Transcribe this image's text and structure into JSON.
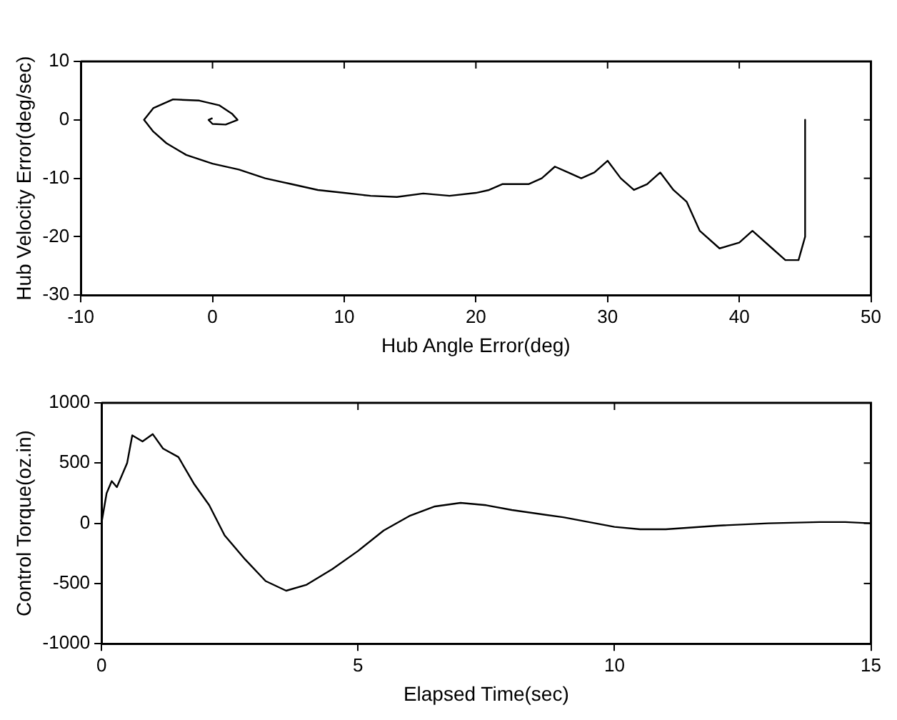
{
  "chart_data": [
    {
      "type": "line",
      "xlabel": "Hub Angle Error(deg)",
      "ylabel": "Hub Velocity Error(deg/sec)",
      "xlim": [
        -10,
        50
      ],
      "ylim": [
        -30,
        10
      ],
      "xticks": [
        -10,
        0,
        10,
        20,
        30,
        40,
        50
      ],
      "yticks": [
        -30,
        -20,
        -10,
        0,
        10
      ],
      "grid": false,
      "legend": false,
      "series": [
        {
          "color": "#000000",
          "x": [
            45,
            45,
            44.5,
            43.5,
            42.5,
            41,
            40,
            38.5,
            37,
            36,
            35,
            34,
            33,
            32,
            31,
            30,
            29,
            28,
            27,
            26,
            25,
            24,
            22,
            21,
            20,
            18,
            16,
            14,
            12,
            10,
            8,
            6,
            4,
            2,
            0,
            -2,
            -3.5,
            -4.5,
            -5.2,
            -4.5,
            -3,
            -1,
            0.5,
            1.5,
            1.9,
            1,
            0,
            -0.3,
            0
          ],
          "values": [
            0,
            -20,
            -24,
            -24,
            -22,
            -19,
            -21,
            -22,
            -19,
            -14,
            -12,
            -9,
            -11,
            -12,
            -10,
            -7,
            -9,
            -10,
            -9,
            -8,
            -10,
            -11,
            -11,
            -12,
            -12.5,
            -13,
            -12.6,
            -13.2,
            -13,
            -12.5,
            -12,
            -11,
            -10,
            -8.5,
            -7.5,
            -6,
            -4,
            -2,
            0,
            2,
            3.5,
            3.3,
            2.5,
            1,
            0,
            -0.8,
            -0.7,
            0,
            0.3
          ]
        }
      ]
    },
    {
      "type": "line",
      "xlabel": "Elapsed Time(sec)",
      "ylabel": "Control Torque(oz.in)",
      "xlim": [
        0,
        15
      ],
      "ylim": [
        -1000,
        1000
      ],
      "xticks": [
        0,
        5,
        10,
        15
      ],
      "yticks": [
        -1000,
        -500,
        0,
        500,
        1000
      ],
      "grid": false,
      "legend": false,
      "series": [
        {
          "color": "#000000",
          "x": [
            0,
            0.1,
            0.2,
            0.3,
            0.5,
            0.6,
            0.8,
            1.0,
            1.2,
            1.5,
            1.8,
            2.1,
            2.4,
            2.8,
            3.2,
            3.6,
            4.0,
            4.5,
            5,
            5.5,
            6,
            6.5,
            7,
            7.5,
            8,
            9,
            10,
            10.5,
            11,
            12,
            13,
            14,
            14.5,
            15
          ],
          "values": [
            0,
            250,
            350,
            300,
            500,
            730,
            680,
            740,
            620,
            550,
            330,
            150,
            -100,
            -300,
            -480,
            -560,
            -510,
            -380,
            -230,
            -60,
            60,
            140,
            170,
            150,
            110,
            50,
            -30,
            -50,
            -50,
            -20,
            0,
            10,
            10,
            0
          ]
        }
      ]
    }
  ]
}
